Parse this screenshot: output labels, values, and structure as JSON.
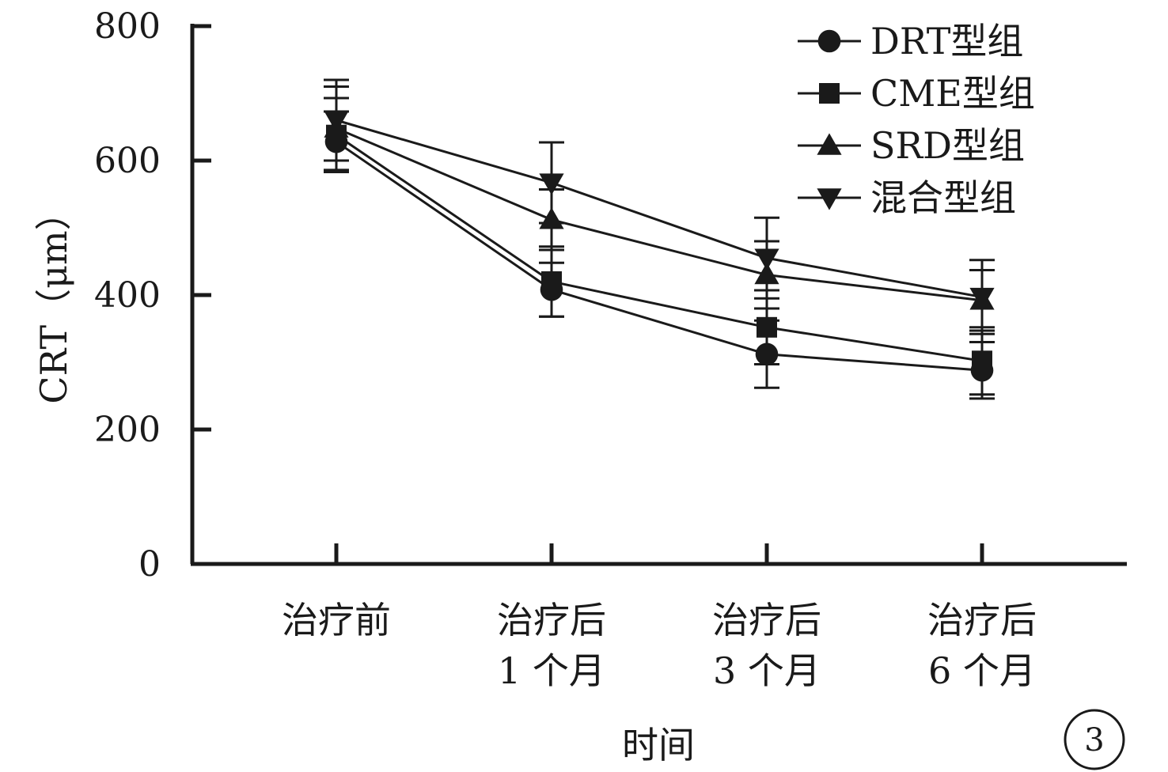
{
  "chart_data": {
    "type": "line",
    "categories": [
      [
        "治疗前"
      ],
      [
        "治疗后",
        "1 个月"
      ],
      [
        "治疗后",
        "3 个月"
      ],
      [
        "治疗后",
        "6 个月"
      ]
    ],
    "xlabel": "时间",
    "ylabel": "CRT（μm）",
    "ylim": [
      0,
      800
    ],
    "yticks": [
      0,
      200,
      400,
      600,
      800
    ],
    "grid": false,
    "legend_position": "top-right",
    "series": [
      {
        "name": "DRT型组",
        "marker": "circle",
        "values": [
          628,
          408,
          312,
          288
        ],
        "errors": [
          45,
          40,
          50,
          42
        ]
      },
      {
        "name": "CME型组",
        "marker": "square",
        "values": [
          638,
          420,
          352,
          302
        ],
        "errors": [
          55,
          52,
          55,
          50
        ]
      },
      {
        "name": "SRD型组",
        "marker": "triangle-up",
        "values": [
          648,
          512,
          430,
          392
        ],
        "errors": [
          62,
          45,
          50,
          45
        ]
      },
      {
        "name": "混合型组",
        "marker": "triangle-down",
        "values": [
          660,
          567,
          455,
          397
        ],
        "errors": [
          60,
          60,
          60,
          55
        ]
      }
    ],
    "panel_label": "3"
  }
}
